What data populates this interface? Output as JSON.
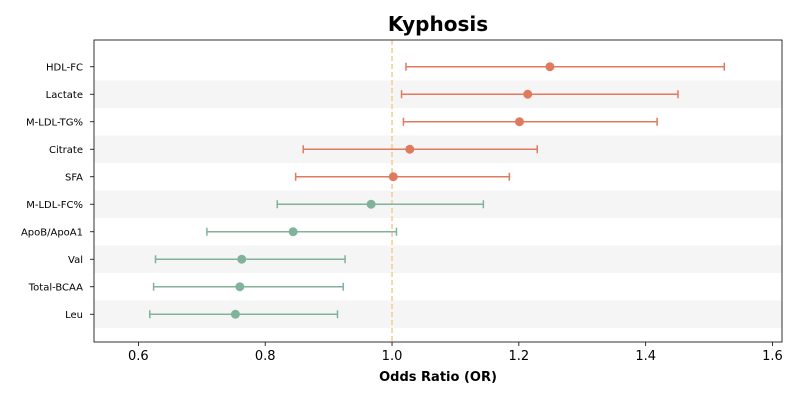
{
  "chart_data": {
    "type": "scatter",
    "subtype": "forest-plot",
    "title": "Kyphosis",
    "xlabel": "Odds Ratio (OR)",
    "ylabel": "",
    "xlim": [
      0.53,
      1.615
    ],
    "x_ticks": [
      0.6,
      0.8,
      1.0,
      1.2,
      1.4,
      1.6
    ],
    "x_tick_labels": [
      "0.6",
      "0.8",
      "1.0",
      "1.2",
      "1.4",
      "1.6"
    ],
    "reference_line": 1.0,
    "grid": false,
    "alternating_row_shading": true,
    "categories": [
      "HDL-FC",
      "Lactate",
      "M-LDL-TG%",
      "Citrate",
      "SFA",
      "M-LDL-FC%",
      "ApoB/ApoA1",
      "Val",
      "Total-BCAA",
      "Leu"
    ],
    "or": [
      1.249,
      1.214,
      1.201,
      1.028,
      1.002,
      0.967,
      0.844,
      0.763,
      0.76,
      0.753
    ],
    "ci_lower": [
      1.022,
      1.015,
      1.018,
      0.86,
      0.848,
      0.819,
      0.708,
      0.627,
      0.624,
      0.618
    ],
    "ci_upper": [
      1.524,
      1.451,
      1.418,
      1.229,
      1.185,
      1.144,
      1.007,
      0.926,
      0.923,
      0.914
    ],
    "colors": {
      "risk": "#e07a5f",
      "protective": "#81b29a",
      "reference": "#f2cc8f",
      "row_shade": "#f5f5f5"
    }
  }
}
